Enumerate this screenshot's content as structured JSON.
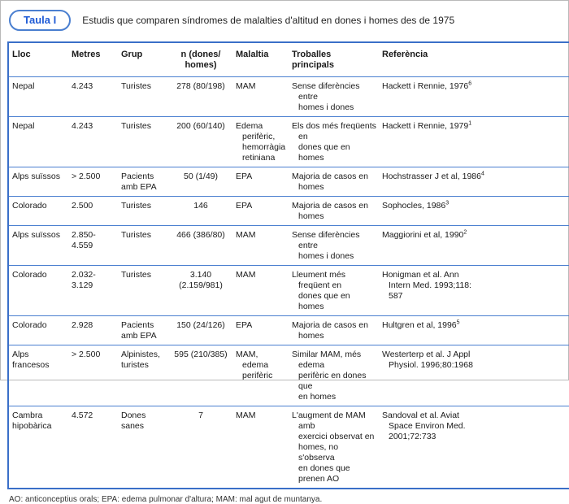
{
  "header": {
    "badge": "Taula I",
    "title": "Estudis que comparen síndromes de malalties d'altitud en dones i homes des de 1975"
  },
  "table": {
    "columns": [
      {
        "key": "lloc",
        "label": "Lloc"
      },
      {
        "key": "metres",
        "label": "Metres"
      },
      {
        "key": "grup",
        "label": "Grup"
      },
      {
        "key": "n",
        "label": "n (dones/\nhomes)"
      },
      {
        "key": "malaltia",
        "label": "Malaltia"
      },
      {
        "key": "troballes",
        "label": "Troballes\nprincipals"
      },
      {
        "key": "referencia",
        "label": "Referència"
      }
    ],
    "rows": [
      {
        "lloc": "Nepal",
        "metres": "4.243",
        "grup": "Turistes",
        "n": "278 (80/198)",
        "malaltia": "MAM",
        "troballes": "Sense diferències entre\nhomes i dones",
        "referencia": "Hackett i Rennie, 1976",
        "ref_sup": "6"
      },
      {
        "lloc": "Nepal",
        "metres": "4.243",
        "grup": "Turistes",
        "n": "200 (60/140)",
        "malaltia": "Edema perifèric,\nhemorràgia\nretiniana",
        "troballes": "Els dos més freqüents en\ndones que en homes",
        "referencia": "Hackett i Rennie, 1979",
        "ref_sup": "1"
      },
      {
        "lloc": "Alps suïssos",
        "metres": "> 2.500",
        "grup": "Pacients amb EPA",
        "n": "50 (1/49)",
        "malaltia": "EPA",
        "troballes": "Majoria de casos en homes",
        "referencia": "Hochstrasser J et al, 1986",
        "ref_sup": "4"
      },
      {
        "lloc": "Colorado",
        "metres": "2.500",
        "grup": "Turistes",
        "n": "146",
        "malaltia": "EPA",
        "troballes": "Majoria de casos en homes",
        "referencia": "Sophocles, 1986",
        "ref_sup": "3"
      },
      {
        "lloc": "Alps suïssos",
        "metres": "2.850-4.559",
        "grup": "Turistes",
        "n": "466 (386/80)",
        "malaltia": "MAM",
        "troballes": "Sense diferències entre\nhomes i dones",
        "referencia": "Maggiorini et al, 1990",
        "ref_sup": "2"
      },
      {
        "lloc": "Colorado",
        "metres": "2.032-3.129",
        "grup": "Turistes",
        "n": "3.140 (2.159/981)",
        "malaltia": "MAM",
        "troballes": "Lleument més freqüent en\ndones que en homes",
        "referencia": "Honigman et al. Ann\nIntern Med. 1993;118:\n587",
        "ref_sup": ""
      },
      {
        "lloc": "Colorado",
        "metres": "2.928",
        "grup": "Pacients amb EPA",
        "n": "150 (24/126)",
        "malaltia": "EPA",
        "troballes": "Majoria de casos en homes",
        "referencia": "Hultgren et al, 1996",
        "ref_sup": "5"
      },
      {
        "lloc": "Alps francesos",
        "metres": "> 2.500",
        "grup": "Alpinistes, turistes",
        "n": "595 (210/385)",
        "malaltia": "MAM, edema\nperifèric",
        "troballes": "Similar MAM, més edema\nperifèric en dones que\nen homes",
        "referencia": "Westerterp et al. J Appl\nPhysiol. 1996;80:1968",
        "ref_sup": ""
      },
      {
        "lloc": "Cambra hipobàrica",
        "metres": "4.572",
        "grup": "Dones sanes",
        "n": "7",
        "malaltia": "MAM",
        "troballes": "L'augment de MAM amb\nexercici observat en\nhomes, no s'observa\nen dones que prenen AO",
        "referencia": "Sandoval et al. Aviat\nSpace Environ Med.\n2001;72:733",
        "ref_sup": ""
      }
    ]
  },
  "footnote": "AO: anticonceptius orals; EPA: edema pulmonar d'altura; MAM: mal agut de muntanya.",
  "colors": {
    "accent_blue": "#3a6fc8",
    "separator_blue": "#4a7fd0",
    "badge_text_blue": "#1f5bd6",
    "frame_gray": "#b9b9b9"
  }
}
